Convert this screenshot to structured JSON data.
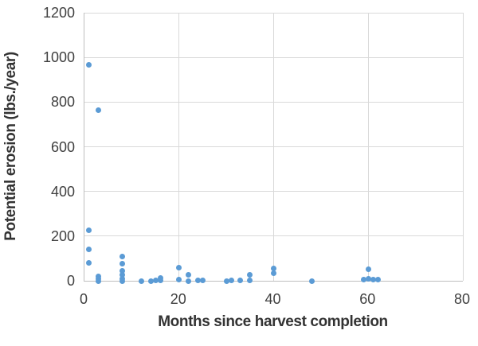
{
  "chart_data": {
    "type": "scatter",
    "title": "",
    "xlabel": "Months since harvest completion",
    "ylabel": "Potential erosion (lbs./year)",
    "xlim": [
      0,
      80
    ],
    "ylim": [
      0,
      1200
    ],
    "x_ticks": [
      0,
      20,
      40,
      60,
      80
    ],
    "y_ticks": [
      0,
      200,
      400,
      600,
      800,
      1000,
      1200
    ],
    "grid": true,
    "legend_position": "none",
    "series": [
      {
        "name": "Potential erosion",
        "marker": "circle",
        "color": "#5B9BD5",
        "points": [
          {
            "x": 1,
            "y": 965
          },
          {
            "x": 1,
            "y": 225
          },
          {
            "x": 1,
            "y": 140
          },
          {
            "x": 1,
            "y": 80
          },
          {
            "x": 3,
            "y": 765
          },
          {
            "x": 3,
            "y": 18
          },
          {
            "x": 3,
            "y": 8
          },
          {
            "x": 3,
            "y": 0
          },
          {
            "x": 8,
            "y": 110
          },
          {
            "x": 8,
            "y": 75
          },
          {
            "x": 8,
            "y": 45
          },
          {
            "x": 8,
            "y": 25
          },
          {
            "x": 8,
            "y": 10
          },
          {
            "x": 8,
            "y": 0
          },
          {
            "x": 12,
            "y": 0
          },
          {
            "x": 14,
            "y": 0
          },
          {
            "x": 15,
            "y": 2
          },
          {
            "x": 16,
            "y": 12
          },
          {
            "x": 16,
            "y": 2
          },
          {
            "x": 20,
            "y": 60
          },
          {
            "x": 20,
            "y": 5
          },
          {
            "x": 22,
            "y": 28
          },
          {
            "x": 22,
            "y": 0
          },
          {
            "x": 24,
            "y": 2
          },
          {
            "x": 25,
            "y": 2
          },
          {
            "x": 30,
            "y": 0
          },
          {
            "x": 31,
            "y": 2
          },
          {
            "x": 33,
            "y": 2
          },
          {
            "x": 35,
            "y": 25
          },
          {
            "x": 35,
            "y": 2
          },
          {
            "x": 40,
            "y": 55
          },
          {
            "x": 40,
            "y": 35
          },
          {
            "x": 48,
            "y": 0
          },
          {
            "x": 59,
            "y": 4
          },
          {
            "x": 60,
            "y": 50
          },
          {
            "x": 60,
            "y": 8
          },
          {
            "x": 61,
            "y": 5
          },
          {
            "x": 62,
            "y": 4
          }
        ]
      }
    ]
  },
  "style": {
    "point_color": "#5B9BD5",
    "grid_color": "#D9D9D9",
    "axis_color": "#BFBFBF",
    "tick_label_color": "#404040",
    "axis_title_color": "#333333",
    "background_color": "#FFFFFF"
  }
}
